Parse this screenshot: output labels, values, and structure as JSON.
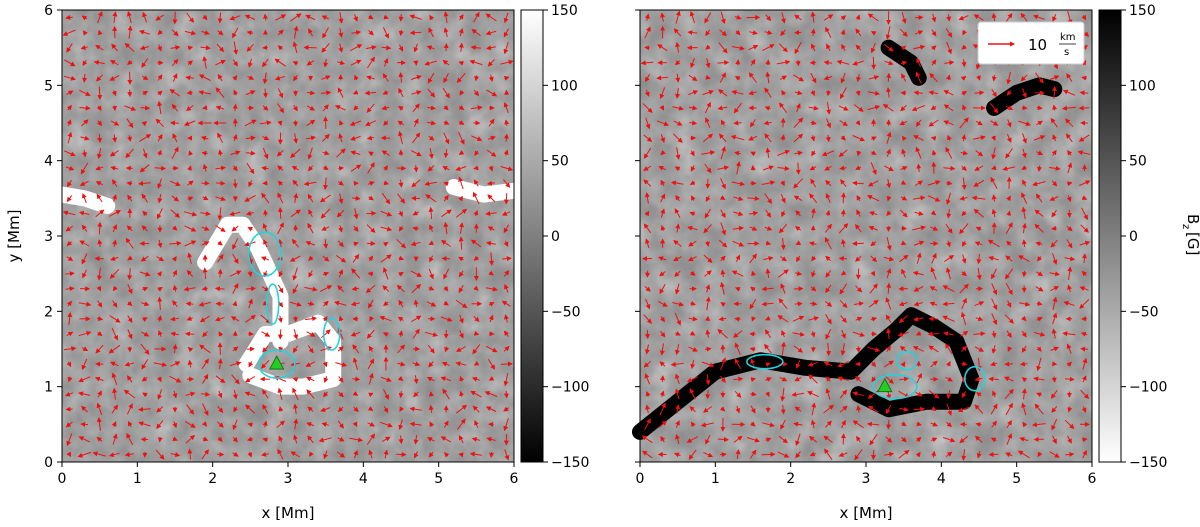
{
  "chart_data": [
    {
      "type": "heatmap",
      "panel": "left",
      "description_values": "Bz magnetogram with red velocity arrows, cyan contours and a green triangle marker",
      "xlabel": "x [Mm]",
      "ylabel": "y [Mm]",
      "xlim": [
        0,
        6
      ],
      "ylim": [
        0,
        6
      ],
      "xticks": [
        "0",
        "1",
        "2",
        "3",
        "4",
        "5",
        "6"
      ],
      "yticks": [
        "0",
        "1",
        "2",
        "3",
        "4",
        "5",
        "6"
      ],
      "colorbar": {
        "range": [
          -150,
          150
        ],
        "ticks": [
          "150",
          "100",
          "50",
          "0",
          "−50",
          "−100",
          "−150"
        ],
        "low_color": "#000000",
        "high_color": "#ffffff",
        "label": ""
      },
      "marker": {
        "shape": "triangle",
        "color": "#22cc22",
        "x": 2.85,
        "y": 1.3
      },
      "contour_color": "#22d3dd",
      "arrow_color": "#ee1111",
      "bright_regions": [
        {
          "x": [
            1.9,
            2.2,
            2.4,
            2.6,
            2.9,
            2.9
          ],
          "y": [
            2.65,
            3.15,
            3.15,
            2.85,
            2.2,
            1.6
          ]
        },
        {
          "x": [
            2.45,
            2.7,
            3.0,
            3.4,
            3.6,
            3.6,
            3.2,
            2.9,
            2.5
          ],
          "y": [
            1.3,
            1.7,
            1.7,
            1.85,
            1.6,
            1.1,
            1.0,
            1.0,
            1.15
          ]
        },
        {
          "x": [
            5.2,
            5.6,
            6.0
          ],
          "y": [
            3.65,
            3.55,
            3.6
          ]
        },
        {
          "x": [
            0.0,
            0.3,
            0.6
          ],
          "y": [
            3.55,
            3.5,
            3.4
          ]
        }
      ]
    },
    {
      "type": "heatmap",
      "panel": "right",
      "xlabel": "x [Mm]",
      "ylabel": "",
      "xlim": [
        0,
        6
      ],
      "ylim": [
        0,
        6
      ],
      "xticks": [
        "0",
        "1",
        "2",
        "3",
        "4",
        "5",
        "6"
      ],
      "yticks": [],
      "colorbar": {
        "range": [
          -150,
          150
        ],
        "ticks": [
          "150",
          "100",
          "50",
          "0",
          "−50",
          "−100",
          "−150"
        ],
        "low_color": "#ffffff",
        "high_color": "#000000",
        "label": "B",
        "label_sub": "z",
        "label_unit": "[G]"
      },
      "legend": {
        "placement": "top-right",
        "label": "10",
        "fraction_num": "km",
        "fraction_den": "s"
      },
      "marker": {
        "shape": "triangle",
        "color": "#22cc22",
        "x": 3.25,
        "y": 1.0
      },
      "contour_color": "#22d3dd",
      "arrow_color": "#ee1111",
      "dark_regions": [
        {
          "x": [
            0.0,
            0.5,
            1.0,
            1.6,
            2.2,
            2.8
          ],
          "y": [
            0.4,
            0.8,
            1.2,
            1.35,
            1.25,
            1.2
          ]
        },
        {
          "x": [
            2.8,
            3.1,
            3.4,
            3.6,
            3.9,
            4.2,
            4.4,
            4.3,
            3.8,
            3.3,
            2.9
          ],
          "y": [
            1.2,
            1.5,
            1.75,
            1.95,
            1.8,
            1.6,
            1.1,
            0.8,
            0.8,
            0.7,
            0.9
          ]
        },
        {
          "x": [
            4.7,
            5.0,
            5.3,
            5.5
          ],
          "y": [
            4.7,
            4.9,
            5.0,
            4.95
          ]
        },
        {
          "x": [
            3.3,
            3.6,
            3.7
          ],
          "y": [
            5.5,
            5.3,
            5.1
          ]
        }
      ]
    }
  ]
}
